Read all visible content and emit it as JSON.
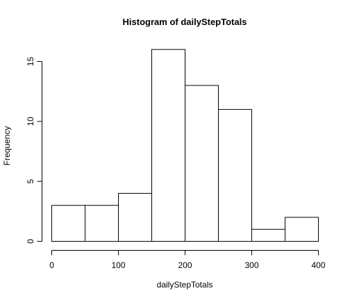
{
  "chart_data": {
    "type": "histogram",
    "title": "Histogram of dailyStepTotals",
    "xlabel": "dailyStepTotals",
    "ylabel": "Frequency",
    "bin_edges": [
      0,
      50,
      100,
      150,
      200,
      250,
      300,
      350,
      400
    ],
    "values": [
      3,
      3,
      4,
      16,
      13,
      11,
      1,
      2
    ],
    "xlim": [
      0,
      400
    ],
    "ylim": [
      0,
      16
    ],
    "x_ticks": [
      0,
      100,
      200,
      300,
      400
    ],
    "y_ticks": [
      0,
      5,
      10,
      15
    ],
    "bar_fill": "#ffffff",
    "bar_stroke": "#000000",
    "grid": false,
    "legend": "none"
  }
}
